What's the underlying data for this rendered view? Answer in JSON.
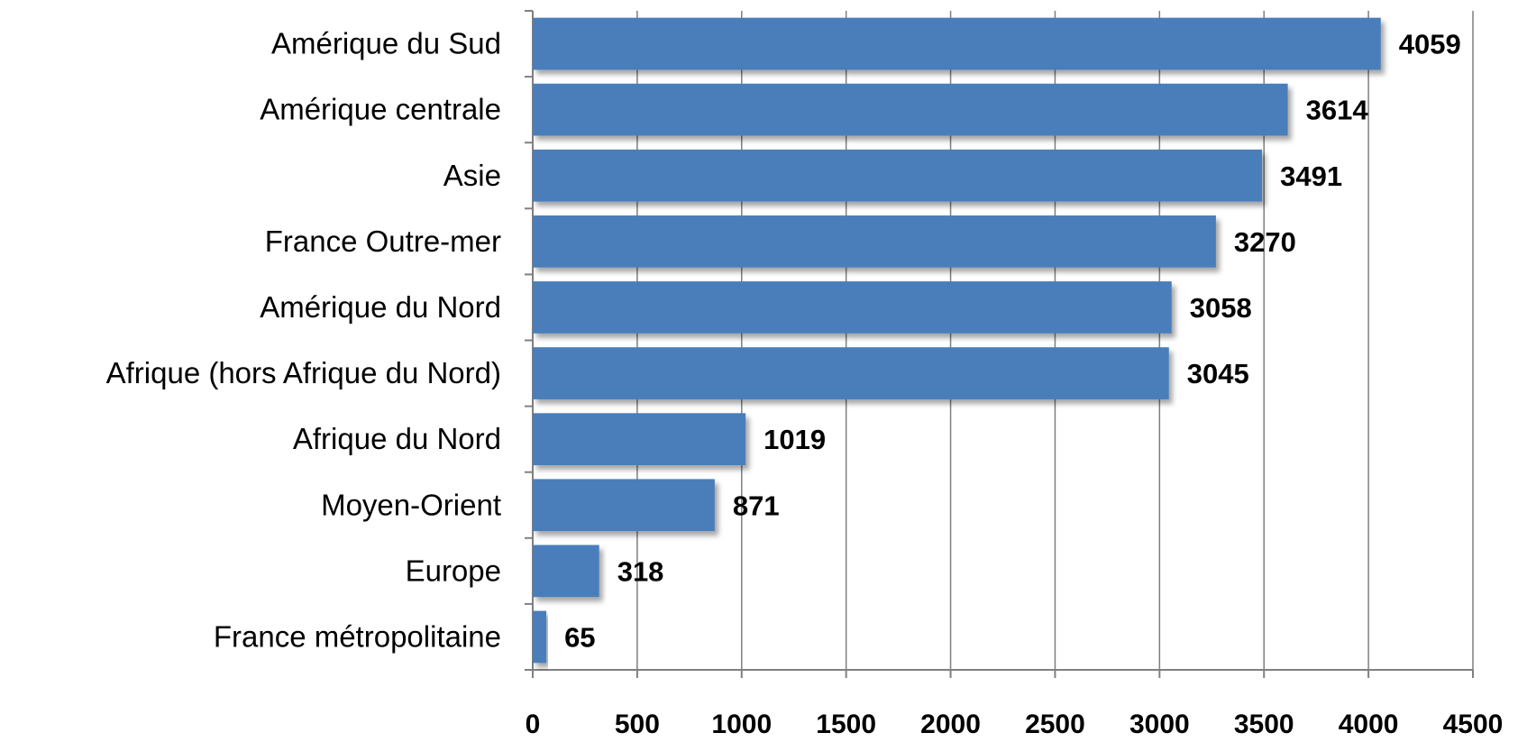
{
  "chart_data": {
    "type": "bar",
    "orientation": "horizontal",
    "title": "",
    "xlabel": "",
    "ylabel": "",
    "categories": [
      "Amérique du Sud",
      "Amérique centrale",
      "Asie",
      "France Outre-mer",
      "Amérique du Nord",
      "Afrique (hors Afrique du Nord)",
      "Afrique du Nord",
      "Moyen-Orient",
      "Europe",
      "France métropolitaine"
    ],
    "values": [
      4059,
      3614,
      3491,
      3270,
      3058,
      3045,
      1019,
      871,
      318,
      65
    ],
    "xlim": [
      0,
      4500
    ],
    "xticks": [
      "0",
      "500",
      "1000",
      "1500",
      "2000",
      "2500",
      "3000",
      "3500",
      "4000",
      "4500"
    ],
    "grid": true,
    "legend": "none",
    "bar_color": "#4a7ebb"
  }
}
